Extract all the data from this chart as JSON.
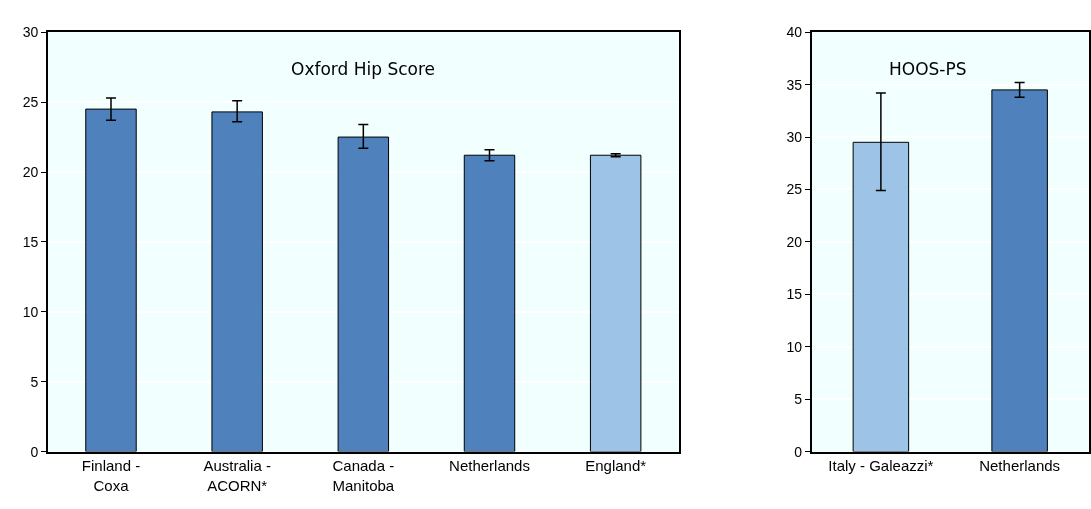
{
  "chart_data": [
    {
      "type": "bar",
      "title": "Oxford Hip Score",
      "categories": [
        "Finland - Coxa",
        "Australia - ACORN*",
        "Canada - Manitoba",
        "Netherlands",
        "England*"
      ],
      "values": [
        24.5,
        24.3,
        22.5,
        21.2,
        21.2
      ],
      "colors": [
        "#4f81bd",
        "#4f81bd",
        "#4f81bd",
        "#4f81bd",
        "#9dc3e6"
      ],
      "errors": [
        [
          23.7,
          25.3
        ],
        [
          23.6,
          25.1
        ],
        [
          21.7,
          23.4
        ],
        [
          20.8,
          21.6
        ],
        [
          21.1,
          21.3
        ]
      ],
      "ylim": [
        0,
        30
      ],
      "yticks": [
        0,
        5,
        10,
        15,
        20,
        25,
        30
      ],
      "grid": "y"
    },
    {
      "type": "bar",
      "title": "HOOS-PS",
      "categories": [
        "Italy - Galeazzi*",
        "Netherlands"
      ],
      "values": [
        29.5,
        34.5
      ],
      "colors": [
        "#9dc3e6",
        "#4f81bd"
      ],
      "errors": [
        [
          24.9,
          34.2
        ],
        [
          33.8,
          35.2
        ]
      ],
      "ylim": [
        0,
        40
      ],
      "yticks": [
        0,
        5,
        10,
        15,
        20,
        25,
        30,
        35,
        40
      ],
      "grid": "y"
    }
  ]
}
